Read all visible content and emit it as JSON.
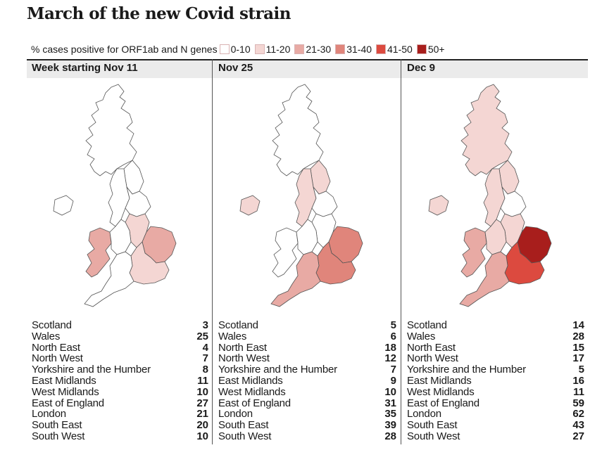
{
  "title": "March of the new Covid strain",
  "legend": {
    "label": "% cases positive for ORF1ab and N genes",
    "bins": [
      {
        "label": "0-10",
        "color": "#ffffff"
      },
      {
        "label": "11-20",
        "color": "#f4d6d3"
      },
      {
        "label": "21-30",
        "color": "#e8aaa4"
      },
      {
        "label": "31-40",
        "color": "#e0857b"
      },
      {
        "label": "41-50",
        "color": "#dc4a3f"
      },
      {
        "label": "50+",
        "color": "#a81e1c"
      }
    ]
  },
  "regions": [
    "Scotland",
    "Wales",
    "North East",
    "North West",
    "Yorkshire and the Humber",
    "East Midlands",
    "West Midlands",
    "East of England",
    "London",
    "South East",
    "South West"
  ],
  "panels": [
    {
      "title": "Week starting Nov 11",
      "values": [
        3,
        25,
        4,
        7,
        8,
        11,
        10,
        27,
        21,
        20,
        10
      ]
    },
    {
      "title": "Nov 25",
      "values": [
        5,
        6,
        18,
        12,
        7,
        9,
        10,
        31,
        35,
        39,
        28
      ]
    },
    {
      "title": "Dec 9",
      "values": [
        14,
        28,
        15,
        17,
        5,
        16,
        11,
        59,
        62,
        43,
        27
      ]
    }
  ]
}
